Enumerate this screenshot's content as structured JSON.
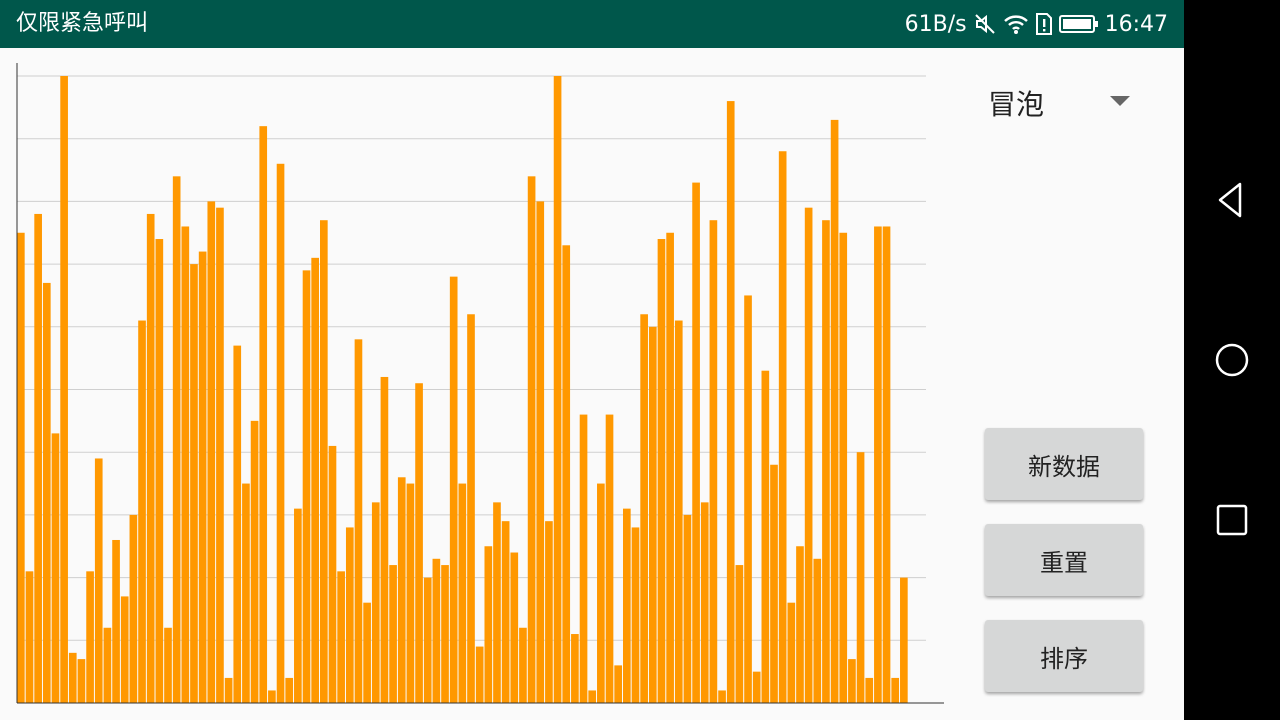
{
  "status_bar": {
    "carrier_text": "仅限紧急呼叫",
    "net_speed": "61B/s",
    "time": "16:47",
    "icons": [
      "mute-icon",
      "wifi-icon",
      "sim-alert-icon",
      "battery-icon"
    ]
  },
  "sort_selector": {
    "selected": "冒泡"
  },
  "buttons": {
    "new_data": "新数据",
    "reset": "重置",
    "sort": "排序"
  },
  "colors": {
    "bar": "#ff9800",
    "status_bar": "#00574b",
    "gridline": "#cfcfcf"
  },
  "chart_data": {
    "type": "bar",
    "ylim": [
      0,
      100
    ],
    "grid": true,
    "values": [
      75,
      21,
      78,
      67,
      43,
      100,
      8,
      7,
      21,
      39,
      12,
      26,
      17,
      30,
      61,
      78,
      74,
      12,
      84,
      76,
      70,
      72,
      80,
      79,
      4,
      57,
      35,
      45,
      92,
      2,
      86,
      4,
      31,
      69,
      71,
      77,
      41,
      21,
      28,
      58,
      16,
      32,
      52,
      22,
      36,
      35,
      51,
      20,
      23,
      22,
      68,
      35,
      62,
      9,
      25,
      32,
      29,
      24,
      12,
      84,
      80,
      29,
      100,
      73,
      11,
      46,
      2,
      35,
      46,
      6,
      31,
      28,
      62,
      60,
      74,
      75,
      61,
      30,
      83,
      32,
      77,
      2,
      96,
      22,
      65,
      5,
      53,
      38,
      88,
      16,
      25,
      79,
      23,
      77,
      93,
      75,
      7,
      40,
      4,
      76,
      76,
      4,
      20,
      0,
      0
    ]
  }
}
